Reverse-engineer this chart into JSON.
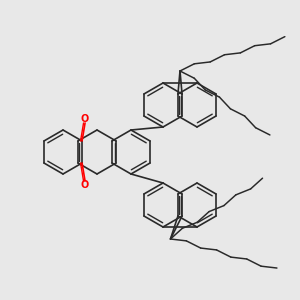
{
  "bg_color": "#e8e8e8",
  "bond_color": "#2a2a2a",
  "oxygen_color": "#ff0000",
  "lw": 1.2,
  "lw_aromatic": 1.0
}
